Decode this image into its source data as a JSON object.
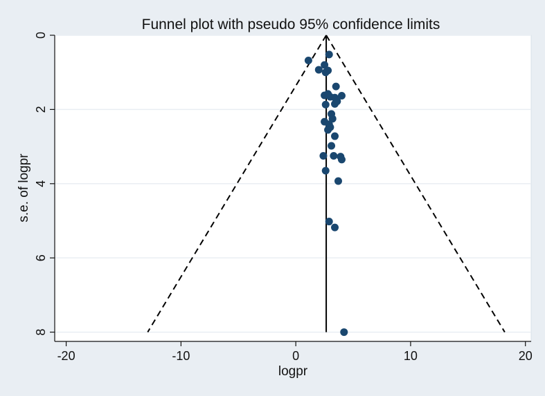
{
  "chart_data": {
    "type": "scatter",
    "title": "Funnel plot with pseudo 95% confidence limits",
    "xlabel": "logpr",
    "ylabel": "s.e. of logpr",
    "xlim": [
      -21,
      20.5
    ],
    "ylim": [
      0,
      8.25
    ],
    "y_reversed": true,
    "grid": true,
    "legend": "none",
    "x_ticks": [
      -20,
      -10,
      0,
      10,
      20
    ],
    "y_ticks": [
      0,
      2,
      4,
      6,
      8
    ],
    "x_tick_labels": [
      "-20",
      "-10",
      "0",
      "10",
      "20"
    ],
    "y_tick_labels": [
      "0",
      "2",
      "4",
      "6",
      "8"
    ],
    "pooled_estimate": 2.65,
    "pseudo_ci": {
      "apex": [
        2.65,
        0
      ],
      "left_bottom": [
        -12.9,
        8
      ],
      "right_bottom": [
        18.2,
        8
      ]
    },
    "series": [
      {
        "points": [
          {
            "x": 1.1,
            "y": 0.68
          },
          {
            "x": 2.0,
            "y": 0.93
          },
          {
            "x": 2.5,
            "y": 0.8
          },
          {
            "x": 2.6,
            "y": 1.0
          },
          {
            "x": 2.9,
            "y": 0.52
          },
          {
            "x": 2.8,
            "y": 0.95
          },
          {
            "x": 3.5,
            "y": 1.38
          },
          {
            "x": 2.5,
            "y": 1.62
          },
          {
            "x": 2.8,
            "y": 1.58
          },
          {
            "x": 3.0,
            "y": 1.66
          },
          {
            "x": 3.4,
            "y": 1.68
          },
          {
            "x": 4.0,
            "y": 1.63
          },
          {
            "x": 2.6,
            "y": 1.87
          },
          {
            "x": 3.4,
            "y": 1.85
          },
          {
            "x": 3.6,
            "y": 1.78
          },
          {
            "x": 3.1,
            "y": 2.12
          },
          {
            "x": 3.2,
            "y": 2.25
          },
          {
            "x": 2.5,
            "y": 2.33
          },
          {
            "x": 2.9,
            "y": 2.4
          },
          {
            "x": 3.0,
            "y": 2.48
          },
          {
            "x": 2.8,
            "y": 2.55
          },
          {
            "x": 3.4,
            "y": 2.72
          },
          {
            "x": 3.1,
            "y": 2.98
          },
          {
            "x": 2.4,
            "y": 3.25
          },
          {
            "x": 3.3,
            "y": 3.25
          },
          {
            "x": 3.9,
            "y": 3.27
          },
          {
            "x": 4.0,
            "y": 3.35
          },
          {
            "x": 2.6,
            "y": 3.65
          },
          {
            "x": 3.7,
            "y": 3.93
          },
          {
            "x": 2.9,
            "y": 5.02
          },
          {
            "x": 3.4,
            "y": 5.18
          },
          {
            "x": 4.2,
            "y": 8.0
          }
        ]
      }
    ]
  },
  "colors": {
    "background": "#e9eef3",
    "plot_background": "#ffffff",
    "grid": "#e9eef3",
    "marker": "#1a476f",
    "lines": "#000000"
  }
}
